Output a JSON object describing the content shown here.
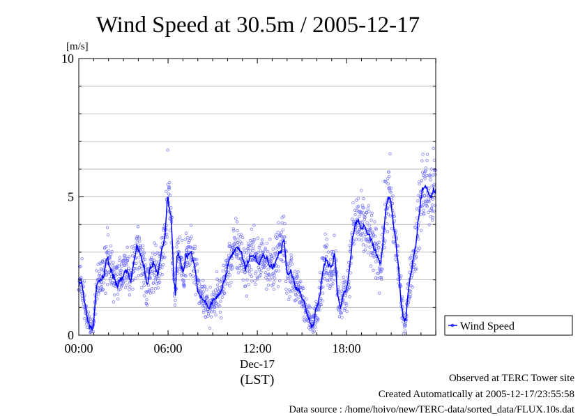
{
  "chart_data": {
    "type": "scatter",
    "title": "Wind Speed at 30.5m / 2005-12-17",
    "ylabel": "[m/s]",
    "xlabel": "(LST)",
    "x_date_label": "Dec-17",
    "ylim": [
      0,
      10
    ],
    "y_ticks": [
      0,
      5,
      10
    ],
    "y_minor_step": 1,
    "x_ticks": [
      "00:00",
      "06:00",
      "12:00",
      "18:00"
    ],
    "x_range_hours": [
      0,
      23.99
    ],
    "grid": true,
    "legend_position": "bottom-right",
    "series": [
      {
        "name": "Wind Speed",
        "style": "line+scatter",
        "color": "#0000ff",
        "x_hours": [
          0.0,
          0.2,
          0.4,
          0.6,
          0.8,
          0.9,
          1.0,
          1.2,
          1.5,
          1.7,
          1.9,
          2.1,
          2.4,
          2.6,
          2.9,
          3.2,
          3.5,
          3.7,
          3.9,
          4.2,
          4.4,
          4.6,
          4.8,
          5.0,
          5.3,
          5.6,
          5.8,
          5.9,
          6.0,
          6.1,
          6.2,
          6.3,
          6.4,
          6.5,
          6.6,
          6.8,
          7.0,
          7.2,
          7.5,
          7.8,
          8.0,
          8.2,
          8.4,
          8.6,
          8.8,
          9.0,
          9.3,
          9.6,
          9.8,
          10.0,
          10.3,
          10.6,
          10.9,
          11.2,
          11.5,
          11.8,
          12.1,
          12.4,
          12.7,
          13.0,
          13.3,
          13.6,
          13.8,
          14.0,
          14.3,
          14.6,
          14.9,
          15.1,
          15.3,
          15.5,
          15.7,
          15.9,
          16.1,
          16.4,
          16.6,
          16.8,
          17.0,
          17.2,
          17.4,
          17.6,
          17.8,
          18.0,
          18.2,
          18.4,
          18.6,
          18.8,
          19.0,
          19.2,
          19.5,
          19.7,
          19.9,
          20.1,
          20.3,
          20.5,
          20.7,
          20.9,
          21.1,
          21.3,
          21.5,
          21.7,
          21.9,
          22.0,
          22.1,
          22.3,
          22.5,
          22.7,
          22.9,
          23.1,
          23.3,
          23.5,
          23.7,
          23.85,
          23.99
        ],
        "y": [
          1.8,
          1.9,
          1.2,
          0.5,
          0.3,
          0.2,
          0.5,
          1.8,
          2.0,
          2.2,
          2.8,
          2.5,
          2.0,
          1.8,
          2.1,
          2.4,
          2.0,
          2.6,
          3.2,
          2.8,
          2.4,
          1.8,
          2.4,
          2.6,
          2.2,
          3.1,
          3.6,
          4.5,
          5.0,
          4.6,
          4.3,
          3.2,
          2.0,
          1.4,
          3.0,
          2.8,
          2.2,
          2.8,
          3.0,
          2.5,
          1.6,
          1.4,
          1.3,
          1.1,
          1.0,
          1.2,
          1.4,
          1.6,
          2.0,
          2.5,
          2.9,
          3.2,
          3.0,
          2.4,
          2.8,
          2.9,
          2.6,
          2.9,
          2.7,
          2.4,
          2.8,
          3.1,
          3.5,
          2.2,
          2.3,
          1.7,
          1.5,
          1.3,
          0.8,
          0.6,
          0.3,
          0.8,
          1.2,
          2.2,
          2.8,
          2.5,
          2.4,
          3.0,
          1.4,
          1.0,
          1.5,
          1.6,
          2.4,
          3.6,
          4.0,
          4.2,
          3.8,
          3.9,
          3.6,
          3.4,
          3.0,
          2.8,
          2.5,
          3.8,
          4.8,
          5.1,
          4.3,
          3.4,
          2.4,
          1.0,
          0.5,
          0.6,
          1.3,
          2.2,
          2.8,
          3.5,
          4.5,
          5.3,
          5.4,
          5.1,
          5.0,
          5.2,
          5.3
        ]
      }
    ]
  },
  "footer": {
    "line1": "Observed at TERC Tower site",
    "line2": "Created Automatically at 2005-12-17/23:55:58",
    "line3": "Data source : /home/hoivo/new/TERC-data/sorted_data/FLUX.10s.dat"
  }
}
